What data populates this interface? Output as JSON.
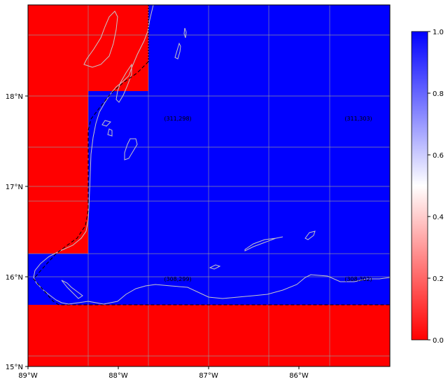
{
  "map": {
    "grid": {
      "rows": [
        [
          "red",
          "blue",
          "blue"
        ],
        [
          "red",
          "blue",
          "blue"
        ],
        [
          "blue",
          "blue",
          "blue"
        ],
        [
          "red",
          "red",
          "red"
        ]
      ]
    },
    "cell_labels": [
      {
        "text": "(311,298)"
      },
      {
        "text": "(311,303)"
      },
      {
        "text": "(308,299)"
      },
      {
        "text": "(308,302)"
      }
    ],
    "x_ticks": [
      "89°W",
      "88°W",
      "87°W",
      "86°W"
    ],
    "y_ticks": [
      "15°N",
      "16°N",
      "17°N",
      "18°N"
    ],
    "colors": {
      "low": "#ff0000",
      "high": "#0000ff",
      "mid": "#ffffff",
      "coast": "#c8c8c8",
      "grid": "#9a9a9a"
    }
  },
  "colorbar": {
    "ticks": [
      "0.0",
      "0.2",
      "0.4",
      "0.6",
      "0.8",
      "1.0"
    ]
  }
}
